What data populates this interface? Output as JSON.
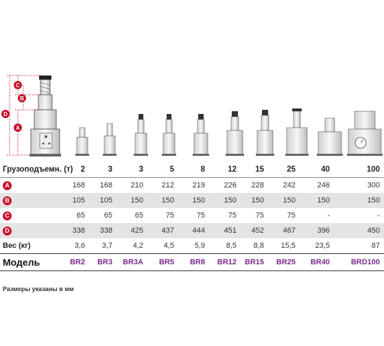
{
  "dimension_letters": [
    "A",
    "B",
    "C",
    "D"
  ],
  "table": {
    "capacity_label": "Грузоподъемн. (т)",
    "capacities": [
      "2",
      "3",
      "3",
      "5",
      "8",
      "12",
      "15",
      "25",
      "40",
      "100"
    ],
    "rows": [
      {
        "label": "A",
        "values": [
          "168",
          "168",
          "210",
          "212",
          "219",
          "226",
          "228",
          "242",
          "246",
          "300"
        ]
      },
      {
        "label": "B",
        "values": [
          "105",
          "105",
          "150",
          "150",
          "150",
          "150",
          "150",
          "150",
          "150",
          "150"
        ]
      },
      {
        "label": "C",
        "values": [
          "65",
          "65",
          "65",
          "75",
          "75",
          "75",
          "75",
          "75",
          "-",
          "-"
        ]
      },
      {
        "label": "D",
        "values": [
          "338",
          "338",
          "425",
          "437",
          "444",
          "451",
          "452",
          "467",
          "396",
          "450"
        ]
      }
    ],
    "weight_label": "Вес (кг)",
    "weights": [
      "3,6",
      "3,7",
      "4,2",
      "4,5",
      "5,9",
      "8,5",
      "8,8",
      "15,5",
      "23,5",
      "87"
    ],
    "model_label": "Модель",
    "models": [
      "BR2",
      "BR3",
      "BR3A",
      "BR5",
      "BR8",
      "BR12",
      "BR15",
      "BR25",
      "BR40",
      "BRD100"
    ]
  },
  "note": "Размеры указаны в мм",
  "colors": {
    "badge": "#c8102e",
    "model": "#7a2b8c"
  }
}
